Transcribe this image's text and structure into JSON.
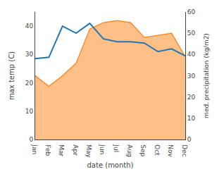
{
  "chart_data": {
    "type": "line",
    "xlabel": "date (month)",
    "ylabel": "max temp (C)",
    "y2label": "med. precipitation (kg/m2)",
    "categories": [
      "Jan",
      "Feb",
      "Mar",
      "Apr",
      "May",
      "Jun",
      "Jul",
      "Aug",
      "Sep",
      "Oct",
      "Nov",
      "Dec"
    ],
    "series": [
      {
        "type": "line",
        "values": [
          28.5,
          29.0,
          40.0,
          37.5,
          41.0,
          35.5,
          34.5,
          34.5,
          34.0,
          31.0,
          32.0,
          29.5
        ]
      },
      {
        "type": "area",
        "axis": "y2",
        "values": [
          30,
          25,
          30,
          36,
          52,
          55,
          56,
          55,
          48,
          49,
          50,
          39
        ]
      }
    ],
    "ylim": [
      0,
      45
    ],
    "yticks": [
      0,
      10,
      20,
      30,
      40
    ],
    "y2lim": [
      0,
      60
    ],
    "y2ticks": [
      0,
      10,
      20,
      30,
      40,
      50,
      60
    ],
    "grid": false
  }
}
